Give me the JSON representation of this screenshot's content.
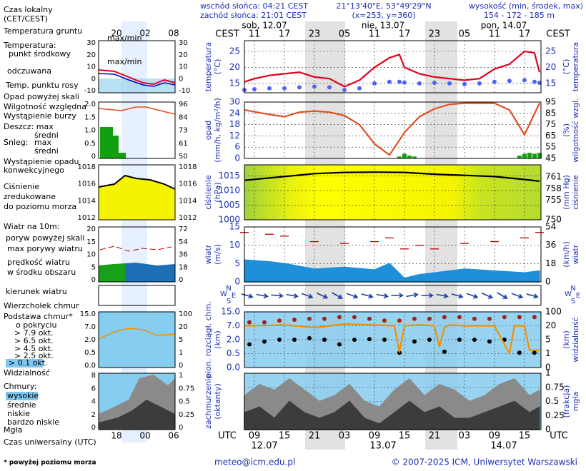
{
  "header": {
    "sunrise": "wschód słońca: 04:21 CEST",
    "sunset": "zachód słońca: 21:01 CEST",
    "coords": "21°13'40\"E, 53°49'29\"N",
    "grid": "(x=253, y=360)",
    "height_title": "wysokość (min, środek, max)",
    "height": "154 - 172 - 185 m"
  },
  "legend": {
    "items": [
      "Czas lokalny",
      "(CET/CEST)",
      "Temperatura gruntu",
      "max/min",
      "Temperatura:",
      "punkt środkowy",
      "max/min",
      "odczuwana",
      "Temp. punktu rosy",
      "Opad powyżej skali",
      "Wilgotność względna",
      "Wystąpienie burzy",
      "Deszcz: max",
      "średni",
      "Śnieg:",
      "max",
      "średni",
      "Wystąpienie opadu",
      "konwekcyjnego",
      "Ciśnienie",
      "zredukowane",
      "do poziomu morza",
      "Wiatr na 10m:",
      "poryw powyżej skali",
      "max porywy wiatru",
      "prędkość wiatru",
      "w środku obszaru",
      "kierunek wiatru",
      "Wierzchołek chmur",
      "Podstawa chmur*",
      "o pokryciu",
      "> 7.9 okt.",
      "> 6.5 okt.",
      "> 4.5 okt.",
      "> 2.5 okt.",
      "> 0.1 okt.",
      "Widzialność",
      "Chmury:",
      "wysokie",
      "średnie",
      "niskie",
      "bardzo niskie",
      "Mgła",
      "Czas uniwersalny (UTC)"
    ],
    "top": [
      "20",
      "02",
      "08"
    ],
    "bottom": [
      "18",
      "00",
      "06"
    ],
    "panels": [
      {
        "left": [
          "30",
          "20",
          "10",
          "0",
          "-10"
        ],
        "right": [
          "30",
          "20",
          "10",
          "0",
          "-10"
        ]
      },
      {
        "left": [
          "2.0",
          "1.5",
          "1.0",
          "0.5",
          "0"
        ],
        "right": [
          "96",
          "84",
          "73",
          "61",
          "50"
        ]
      },
      {
        "left": [
          "1018",
          "1016",
          "1014",
          "1012"
        ],
        "right": [
          "1018",
          "1016",
          "1014",
          "1012"
        ]
      },
      {
        "left": [
          "20",
          "15",
          "10",
          "5",
          "0"
        ],
        "right": [
          "72",
          "54",
          "36",
          "18",
          "0"
        ]
      },
      {
        "left": [
          "15.0",
          "7.0",
          "2.0",
          "0.5",
          "0.0"
        ],
        "right": [
          "100",
          "20",
          "5",
          "1",
          "0"
        ]
      },
      {
        "left": [
          "8",
          "6",
          "4",
          "2",
          "0"
        ],
        "right": [
          "1",
          "0.75",
          "0.5",
          "0.25",
          "0"
        ]
      }
    ]
  },
  "chart_data": [
    {
      "type": "line",
      "ylabel": [
        "temperatura",
        "(°C)"
      ],
      "y2label": [
        "(°C)",
        "temperatura"
      ],
      "x2label": "CEST",
      "dates": [
        "sob, 12.07",
        "nie, 13.07",
        "pon, 14.07"
      ],
      "x2ticks": [
        {
          "value": 9,
          "label": "11"
        },
        {
          "value": 15,
          "label": "17"
        },
        {
          "value": 21,
          "label": "23"
        },
        {
          "value": 27,
          "label": "05"
        },
        {
          "value": 33,
          "label": "11"
        },
        {
          "value": 39,
          "label": "17"
        },
        {
          "value": 45,
          "label": "23"
        },
        {
          "value": 51,
          "label": "05"
        },
        {
          "value": 57,
          "label": "11"
        },
        {
          "value": 63,
          "label": "17"
        }
      ],
      "ylim": [
        12.1,
        28.3
      ],
      "yticks": [
        15,
        20,
        25
      ],
      "mirror_yticks": true,
      "grid": true,
      "series": [
        {
          "style": "line",
          "color": "#e00020",
          "x": [
            7,
            9,
            12,
            15,
            18,
            21,
            24,
            27,
            30,
            33,
            36,
            38,
            39,
            42,
            45,
            48,
            51,
            54,
            57,
            60,
            63,
            65,
            66
          ],
          "values": [
            15.5,
            16.5,
            17.5,
            18,
            18.5,
            17,
            16.5,
            14,
            16,
            20,
            23,
            24,
            20,
            18,
            17,
            16.5,
            16,
            16.5,
            19.5,
            21,
            25,
            24.5,
            18.5
          ]
        },
        {
          "style": "dots",
          "color": "#5060ff",
          "x": [
            7,
            9,
            12,
            15,
            18,
            21,
            24,
            27,
            30,
            33,
            36,
            38,
            39,
            42,
            45,
            48,
            51,
            54,
            57,
            60,
            63,
            65,
            66
          ],
          "values": [
            13,
            13.2,
            13.5,
            13.5,
            13.8,
            14,
            13.8,
            13,
            13.5,
            15,
            15.5,
            15.5,
            15.3,
            15,
            15.2,
            15,
            14.8,
            15,
            15.5,
            15.8,
            16,
            15.5,
            15.2
          ]
        }
      ]
    },
    {
      "type": "line",
      "ylabel": [
        "opad",
        "(mm/h, kg/m²/h)"
      ],
      "y2label": [
        "(%)",
        "wilgotność wzgl."
      ],
      "ylim": [
        0,
        30
      ],
      "yticks": [
        0,
        6,
        12,
        18,
        24,
        30
      ],
      "y2lim": [
        45,
        95
      ],
      "y2ticks": [
        45,
        55,
        65,
        75,
        85,
        95
      ],
      "grid": true,
      "series": [
        {
          "style": "bars",
          "color": "#10a010",
          "x": [
            38,
            39,
            40,
            41,
            62,
            63,
            64,
            65,
            66
          ],
          "values": [
            1,
            2.5,
            1.5,
            1,
            1.5,
            2.5,
            3,
            2.5,
            3
          ]
        },
        {
          "style": "line",
          "axis": "y2",
          "color": "#e05020",
          "x": [
            7,
            12,
            15,
            18,
            21,
            24,
            27,
            30,
            33,
            36,
            39,
            42,
            45,
            48,
            51,
            57,
            60,
            63,
            66
          ],
          "values": [
            88,
            84,
            82,
            86,
            87,
            86,
            83,
            75,
            58,
            48,
            68,
            82,
            89,
            93,
            94,
            94,
            88,
            66,
            94
          ]
        }
      ]
    },
    {
      "type": "line",
      "ylabel": [
        "ciśnienie",
        "(hPa)"
      ],
      "y2label": [
        "(mm Hg)",
        "ciśnienie"
      ],
      "ylim": [
        1000,
        1018.8
      ],
      "yticks": [
        1000,
        1005,
        1010,
        1015
      ],
      "y2lim": [
        750,
        764.1
      ],
      "y2ticks": [
        750,
        755,
        758,
        761
      ],
      "grid": true,
      "series": [
        {
          "style": "line",
          "color": "#000000",
          "x": [
            7,
            15,
            21,
            27,
            33,
            39,
            45,
            51,
            57,
            63,
            66
          ],
          "values": [
            1013.5,
            1014.8,
            1015.8,
            1016.2,
            1016.3,
            1016.2,
            1015.6,
            1015.2,
            1014.8,
            1013.8,
            1013.2
          ]
        }
      ]
    },
    {
      "type": "line",
      "ylabel": [
        "wiatr",
        "(m/s)"
      ],
      "y2label": [
        "(km/h)",
        "wiatr"
      ],
      "ylim": [
        0,
        15
      ],
      "yticks": [
        0,
        5,
        10,
        15
      ],
      "y2lim": [
        0,
        54
      ],
      "y2ticks": [
        0,
        18,
        36,
        54
      ],
      "grid": true,
      "series": [
        {
          "style": "area",
          "color": "#1e8fd8",
          "x": [
            7,
            12,
            15,
            21,
            27,
            33,
            36,
            39,
            42,
            45,
            51,
            57,
            63,
            66
          ],
          "values": [
            6,
            5.5,
            5,
            3.5,
            4,
            3.3,
            5,
            1,
            2,
            2.5,
            3.5,
            3,
            2.5,
            3
          ]
        },
        {
          "style": "dashes",
          "color": "#c00000",
          "x": [
            7,
            12,
            15,
            21,
            27,
            33,
            36,
            39,
            42,
            45,
            51,
            57,
            63,
            66
          ],
          "values": [
            13.5,
            13,
            12.5,
            11,
            10.5,
            11,
            12,
            9,
            10,
            9,
            10.5,
            11,
            12,
            13.5
          ]
        }
      ]
    },
    {
      "type": "vector",
      "compass": [
        "N",
        "W",
        "E",
        "S"
      ],
      "color": "#2040a0",
      "x": [
        7.5,
        10.5,
        13.5,
        16.5,
        19.5,
        22.5,
        25.5,
        28.5,
        31.5,
        34.5,
        37.5,
        40.5,
        43.5,
        46.5,
        49.5,
        52.5,
        55.5,
        58.5,
        61.5,
        64.5
      ],
      "values": [
        285,
        280,
        275,
        280,
        290,
        295,
        300,
        290,
        285,
        280,
        270,
        260,
        270,
        280,
        285,
        290,
        295,
        300,
        290,
        285
      ]
    },
    {
      "type": "line",
      "ylabel": [
        "pion. rozciągł. chm.",
        "(km)"
      ],
      "y2label": [
        "(km)",
        "widzialność"
      ],
      "ylim": [
        0,
        15
      ],
      "yscale": "ticks",
      "yticks": [
        {
          "value": 0,
          "label": "0.0"
        },
        0.5,
        {
          "value": 2,
          "label": "2.0"
        },
        {
          "value": 7,
          "label": "7.0"
        },
        {
          "value": 15,
          "label": "15.0"
        }
      ],
      "y2lim": [
        0,
        100
      ],
      "y2scale": "ticks",
      "y2ticks": [
        0,
        1,
        5,
        20,
        100
      ],
      "grid": true,
      "series": [
        {
          "style": "dots",
          "color": "#a02020",
          "x": [
            8,
            11,
            14,
            17,
            20,
            23,
            26,
            29,
            32,
            35,
            38,
            41,
            44,
            47,
            50,
            53,
            56,
            59,
            62,
            65
          ],
          "values": [
            9,
            9,
            10,
            10.5,
            11,
            11,
            12,
            12,
            11,
            10,
            10,
            11,
            11,
            12,
            12,
            11,
            11,
            12,
            12,
            12
          ]
        },
        {
          "style": "dots",
          "color": "#000000",
          "x": [
            8,
            11,
            14,
            17,
            20,
            23,
            26,
            29,
            32,
            35,
            38,
            41,
            44,
            47,
            50,
            53,
            56,
            59,
            62,
            65
          ],
          "values": [
            1.5,
            1.8,
            2,
            2,
            2.5,
            2,
            1.5,
            2,
            2.2,
            2,
            0.6,
            1.8,
            2,
            0.7,
            2,
            2,
            1.8,
            2,
            0.6,
            0.6
          ]
        },
        {
          "style": "line",
          "axis": "y2",
          "color": "#f09000",
          "x": [
            7,
            12,
            15,
            21,
            27,
            33,
            37,
            38,
            39,
            42,
            45,
            46,
            47,
            48,
            51,
            57,
            60,
            61,
            63,
            64,
            66
          ],
          "values": [
            20,
            22,
            25,
            18,
            30,
            25,
            20,
            1.5,
            20,
            25,
            20,
            3,
            18,
            25,
            20,
            20,
            1,
            20,
            20,
            2,
            2
          ]
        }
      ]
    },
    {
      "type": "line",
      "ylabel": [
        "zachmurzenie",
        "(oktanty)"
      ],
      "y2label": [
        "(frakcja)",
        "mgła"
      ],
      "y2lim": [
        0,
        1
      ],
      "y2ticks": [
        0,
        0.25,
        0.5,
        0.75,
        1
      ],
      "grid": true,
      "xlabel": "UTC",
      "dates": [
        "12.07",
        "13.07",
        "14.07"
      ],
      "xlim": [
        7,
        66.3
      ],
      "xticks": [
        {
          "value": 9,
          "label": "09"
        },
        15,
        21,
        {
          "value": 27,
          "label": "03"
        },
        {
          "value": 33,
          "label": "09"
        },
        {
          "value": 39,
          "label": "15"
        },
        {
          "value": 45,
          "label": "21"
        },
        {
          "value": 51,
          "label": "03"
        },
        {
          "value": 57,
          "label": "09"
        },
        {
          "value": 63,
          "label": "15"
        }
      ],
      "series": [
        {
          "style": "area",
          "axis": "y2",
          "color": "#8a8a8a",
          "x": [
            7,
            10,
            13,
            16,
            19,
            22,
            25,
            28,
            31,
            34,
            37,
            40,
            43,
            46,
            49,
            52,
            55,
            58,
            61,
            64,
            66
          ],
          "values": [
            0.6,
            0.8,
            0.7,
            0.9,
            0.7,
            0.5,
            0.6,
            0.8,
            0.5,
            0.4,
            0.7,
            0.9,
            0.6,
            0.8,
            0.7,
            0.5,
            0.6,
            0.8,
            0.9,
            0.6,
            0.7
          ]
        },
        {
          "style": "area",
          "axis": "y2",
          "color": "#3c3c3c",
          "x": [
            7,
            10,
            13,
            16,
            19,
            22,
            25,
            28,
            31,
            34,
            37,
            40,
            43,
            46,
            49,
            52,
            55,
            58,
            61,
            64,
            66
          ],
          "values": [
            0.3,
            0.4,
            0.2,
            0.5,
            0.3,
            0.2,
            0.3,
            0.5,
            0.2,
            0.1,
            0.3,
            0.5,
            0.3,
            0.4,
            0.2,
            0.2,
            0.3,
            0.4,
            0.5,
            0.3,
            0.4
          ]
        }
      ]
    }
  ],
  "footer": {
    "note": "* powyżej poziomu morza",
    "email": "meteo@icm.edu.pl",
    "copyright": "© 2007-2025 ICM, Uniwersytet Warszawski"
  }
}
